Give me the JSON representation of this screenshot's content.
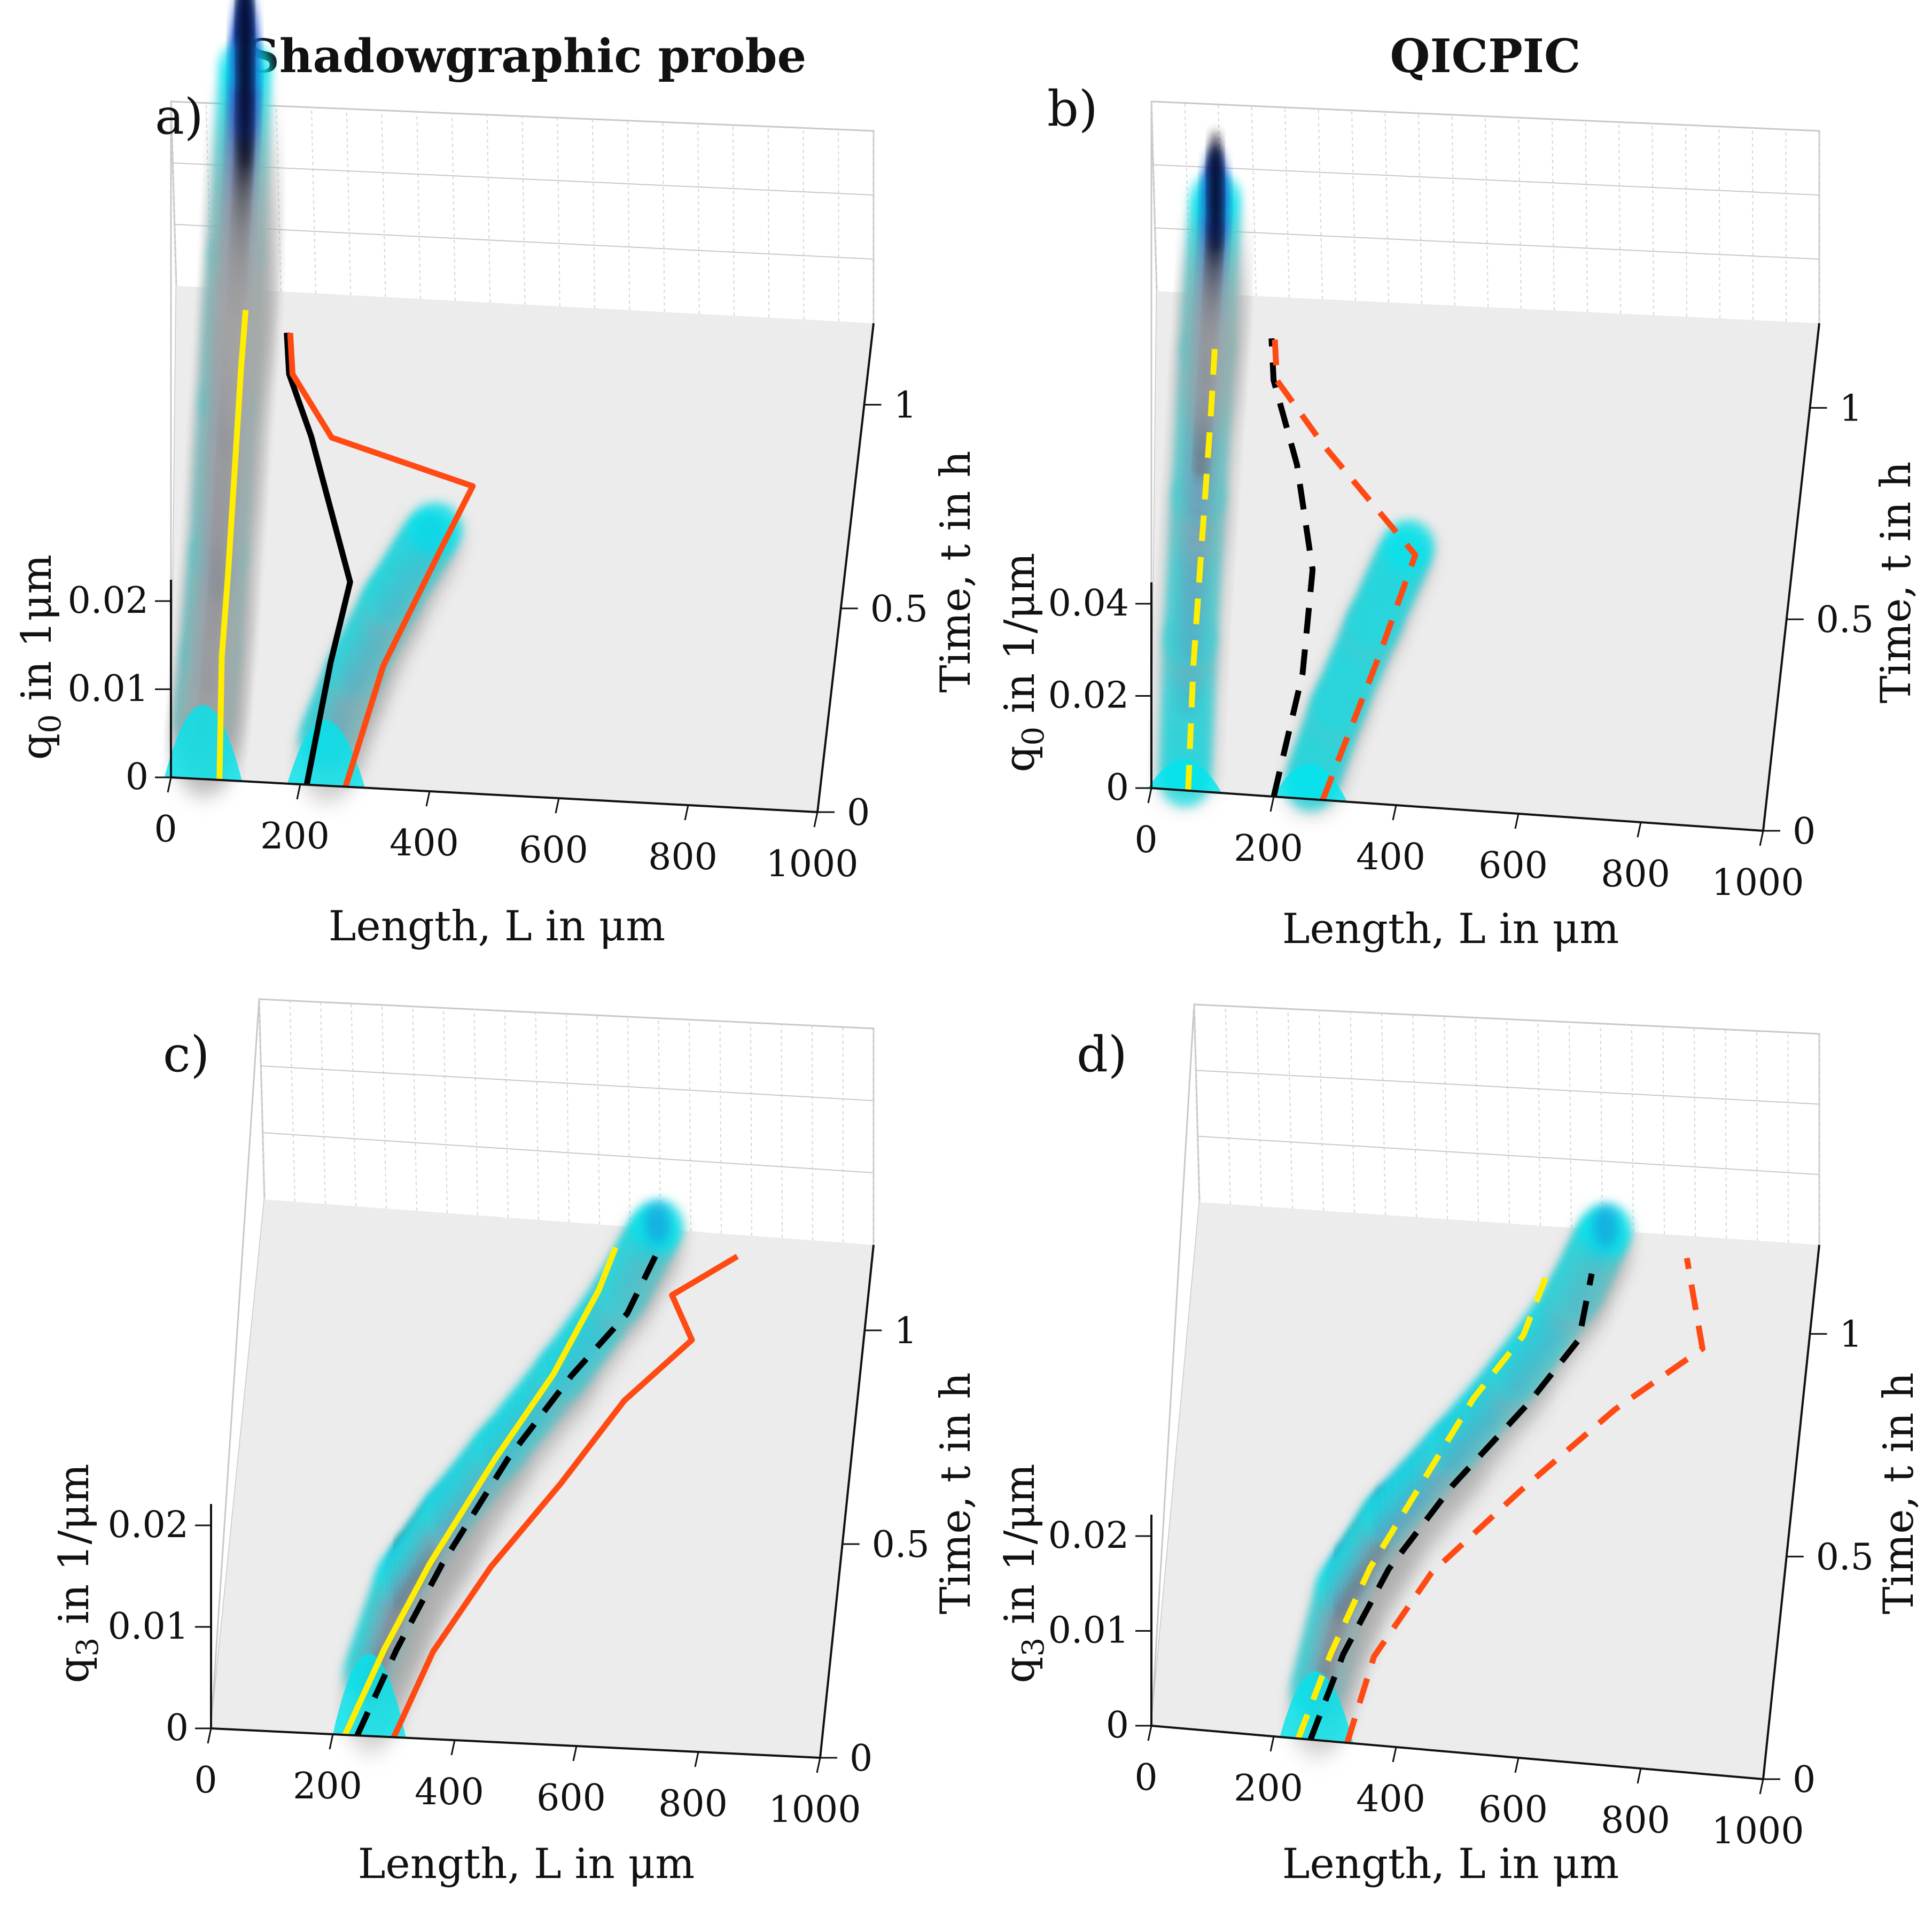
{
  "figure": {
    "column_titles": [
      "Shadowgraphic probe",
      "QICPIC"
    ],
    "colors": {
      "surface": "#ececec",
      "grid": "#c8c8c8",
      "low": "#00e5ee",
      "mid": "#1a4fcc",
      "high": "#000010",
      "yellow": "#ffee00",
      "black": "#000000",
      "orange": "#ff4a14"
    }
  },
  "chart_data": [
    {
      "type": "surface3d",
      "panel": "a)",
      "xlabel": "Length, L in μm",
      "ylabel": "q0 in 1μm",
      "zlabel": "Time, t in h",
      "x_ticks": [
        "0",
        "200",
        "400",
        "600",
        "800",
        "1000"
      ],
      "y_ticks": [
        "0",
        "0.01",
        "0.02"
      ],
      "z_ticks": [
        "0",
        "0.5",
        "1"
      ],
      "xlim": [
        0,
        1000
      ],
      "ylim": [
        0,
        0.02
      ],
      "zlim": [
        0,
        1.2
      ],
      "ridge": [
        [
          50,
          0.0,
          0.012
        ],
        [
          60,
          0.1,
          0.02
        ],
        [
          70,
          0.3,
          0.024
        ],
        [
          80,
          0.6,
          0.03
        ],
        [
          90,
          0.9,
          0.036
        ],
        [
          100,
          1.1,
          0.06
        ]
      ],
      "ridge2": [
        [
          240,
          0.0,
          0.01
        ],
        [
          280,
          0.2,
          0.008
        ],
        [
          330,
          0.4,
          0.006
        ],
        [
          390,
          0.6,
          0.004
        ]
      ],
      "series": [
        {
          "name": "yellow",
          "style": "solid",
          "points": [
            [
              75,
              0
            ],
            [
              75,
              0.3
            ],
            [
              82,
              0.5
            ],
            [
              90,
              0.8
            ],
            [
              95,
              1.0
            ],
            [
              100,
              1.15
            ]
          ]
        },
        {
          "name": "black",
          "style": "solid",
          "points": [
            [
              210,
              0
            ],
            [
              240,
              0.3
            ],
            [
              265,
              0.5
            ],
            [
              200,
              0.85
            ],
            [
              165,
              1.0
            ],
            [
              160,
              1.1
            ]
          ]
        },
        {
          "name": "orange",
          "style": "solid",
          "points": [
            [
              270,
              0
            ],
            [
              320,
              0.3
            ],
            [
              400,
              0.6
            ],
            [
              440,
              0.75
            ],
            [
              230,
              0.85
            ],
            [
              170,
              1.0
            ],
            [
              165,
              1.1
            ]
          ]
        }
      ]
    },
    {
      "type": "surface3d",
      "panel": "b)",
      "xlabel": "Length, L in μm",
      "ylabel": "q0 in 1/μm",
      "zlabel": "Time, t in h",
      "x_ticks": [
        "0",
        "200",
        "400",
        "600",
        "800",
        "1000"
      ],
      "y_ticks": [
        "0",
        "0.02",
        "0.04"
      ],
      "z_ticks": [
        "0",
        "0.5",
        "1"
      ],
      "xlim": [
        0,
        1000
      ],
      "ylim": [
        0,
        0.04
      ],
      "zlim": [
        0,
        1.2
      ],
      "ridge": [
        [
          55,
          0.0,
          0.004
        ],
        [
          60,
          0.3,
          0.012
        ],
        [
          70,
          0.6,
          0.02
        ],
        [
          80,
          0.9,
          0.03
        ],
        [
          90,
          1.1,
          0.06
        ]
      ],
      "ridge2": [
        [
          260,
          0.0,
          0.006
        ],
        [
          300,
          0.2,
          0.005
        ],
        [
          350,
          0.4,
          0.005
        ],
        [
          400,
          0.6,
          0.004
        ]
      ],
      "series": [
        {
          "name": "yellow",
          "style": "dashed",
          "points": [
            [
              60,
              0
            ],
            [
              65,
              0.3
            ],
            [
              75,
              0.6
            ],
            [
              85,
              0.9
            ],
            [
              90,
              1.1
            ]
          ]
        },
        {
          "name": "black",
          "style": "dashed",
          "points": [
            [
              200,
              0
            ],
            [
              240,
              0.3
            ],
            [
              250,
              0.55
            ],
            [
              220,
              0.8
            ],
            [
              180,
              1.0
            ],
            [
              175,
              1.1
            ]
          ]
        },
        {
          "name": "orange",
          "style": "dashed",
          "points": [
            [
              280,
              0
            ],
            [
              360,
              0.35
            ],
            [
              410,
              0.6
            ],
            [
              260,
              0.85
            ],
            [
              185,
              1.0
            ],
            [
              180,
              1.1
            ]
          ]
        }
      ]
    },
    {
      "type": "surface3d",
      "panel": "c)",
      "xlabel": "Length, L in μm",
      "ylabel": "q3 in 1/μm",
      "zlabel": "Time, t in h",
      "x_ticks": [
        "0",
        "200",
        "400",
        "600",
        "800",
        "1000"
      ],
      "y_ticks": [
        "0",
        "0.01",
        "0.02"
      ],
      "z_ticks": [
        "0",
        "0.5",
        "1"
      ],
      "xlim": [
        0,
        1000
      ],
      "ylim": [
        0,
        0.02
      ],
      "zlim": [
        0,
        1.2
      ],
      "ridge": [
        [
          260,
          0.0,
          0.012
        ],
        [
          300,
          0.2,
          0.014
        ],
        [
          360,
          0.4,
          0.01
        ],
        [
          430,
          0.6,
          0.006
        ],
        [
          520,
          0.8,
          0.005
        ],
        [
          600,
          1.0,
          0.004
        ],
        [
          650,
          1.15,
          0.005
        ]
      ],
      "series": [
        {
          "name": "yellow",
          "style": "solid",
          "points": [
            [
              220,
              0
            ],
            [
              270,
              0.2
            ],
            [
              330,
              0.4
            ],
            [
              420,
              0.65
            ],
            [
              500,
              0.85
            ],
            [
              560,
              1.05
            ],
            [
              580,
              1.15
            ]
          ]
        },
        {
          "name": "black",
          "style": "dashed",
          "points": [
            [
              240,
              0
            ],
            [
              290,
              0.2
            ],
            [
              350,
              0.4
            ],
            [
              440,
              0.65
            ],
            [
              530,
              0.85
            ],
            [
              610,
              1.0
            ],
            [
              650,
              1.15
            ]
          ]
        },
        {
          "name": "orange",
          "style": "solid",
          "points": [
            [
              300,
              0
            ],
            [
              350,
              0.2
            ],
            [
              430,
              0.4
            ],
            [
              530,
              0.6
            ],
            [
              620,
              0.8
            ],
            [
              720,
              0.95
            ],
            [
              680,
              1.05
            ],
            [
              780,
              1.15
            ]
          ]
        }
      ]
    },
    {
      "type": "surface3d",
      "panel": "d)",
      "xlabel": "Length, L in μm",
      "ylabel": "q3 in 1/μm",
      "zlabel": "Time, t in h",
      "x_ticks": [
        "0",
        "200",
        "400",
        "600",
        "800",
        "1000"
      ],
      "y_ticks": [
        "0",
        "0.01",
        "0.02"
      ],
      "z_ticks": [
        "0",
        "0.5",
        "1"
      ],
      "xlim": [
        0,
        1000
      ],
      "ylim": [
        0,
        0.02
      ],
      "zlim": [
        0,
        1.2
      ],
      "ridge": [
        [
          270,
          0.0,
          0.01
        ],
        [
          300,
          0.2,
          0.014
        ],
        [
          360,
          0.4,
          0.011
        ],
        [
          450,
          0.6,
          0.008
        ],
        [
          540,
          0.8,
          0.006
        ],
        [
          620,
          1.0,
          0.005
        ],
        [
          660,
          1.15,
          0.005
        ]
      ],
      "series": [
        {
          "name": "yellow",
          "style": "dashed",
          "points": [
            [
              240,
              0
            ],
            [
              280,
              0.2
            ],
            [
              330,
              0.4
            ],
            [
              400,
              0.6
            ],
            [
              470,
              0.8
            ],
            [
              540,
              0.95
            ],
            [
              570,
              1.1
            ]
          ]
        },
        {
          "name": "black",
          "style": "dashed",
          "points": [
            [
              260,
              0
            ],
            [
              300,
              0.2
            ],
            [
              360,
              0.4
            ],
            [
              450,
              0.6
            ],
            [
              560,
              0.8
            ],
            [
              630,
              0.95
            ],
            [
              640,
              1.1
            ]
          ]
        },
        {
          "name": "orange",
          "style": "dashed",
          "points": [
            [
              320,
              0
            ],
            [
              350,
              0.2
            ],
            [
              430,
              0.4
            ],
            [
              560,
              0.6
            ],
            [
              700,
              0.8
            ],
            [
              830,
              0.95
            ],
            [
              790,
              1.15
            ]
          ]
        }
      ]
    }
  ]
}
